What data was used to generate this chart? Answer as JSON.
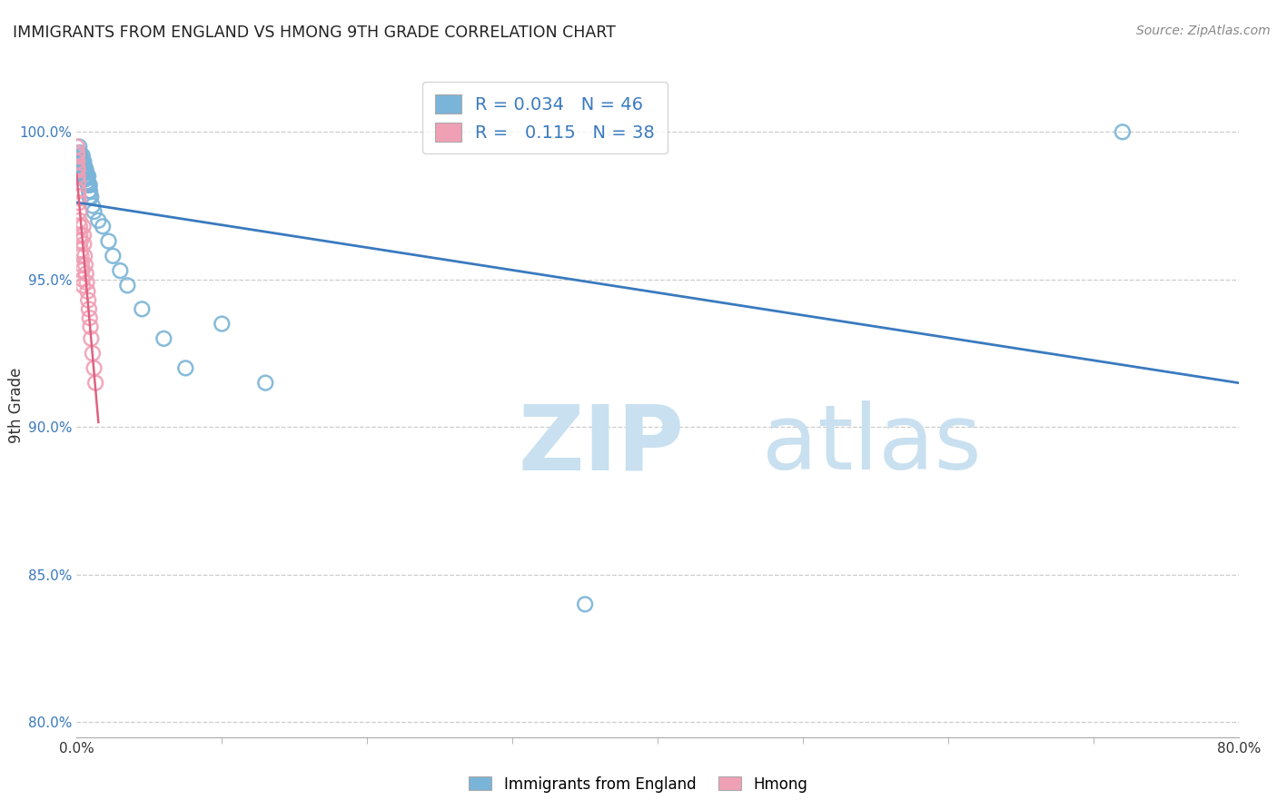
{
  "title": "IMMIGRANTS FROM ENGLAND VS HMONG 9TH GRADE CORRELATION CHART",
  "source": "Source: ZipAtlas.com",
  "ylabel": "9th Grade",
  "xlim": [
    0.0,
    80.0
  ],
  "ylim": [
    79.5,
    102.0
  ],
  "ytick_positions": [
    80.0,
    85.0,
    90.0,
    95.0,
    100.0
  ],
  "ytick_labels": [
    "80.0%",
    "85.0%",
    "90.0%",
    "95.0%",
    "100.0%"
  ],
  "blue_color": "#7ab4d8",
  "pink_color": "#f0a0b5",
  "trend_blue_color": "#3a7abf",
  "trend_pink_color": "#e06080",
  "watermark_zip_color": "#c8e0f0",
  "watermark_atlas_color": "#c8e0f0",
  "blue_x": [
    0.18,
    0.22,
    0.25,
    0.28,
    0.3,
    0.33,
    0.35,
    0.38,
    0.4,
    0.42,
    0.45,
    0.48,
    0.5,
    0.52,
    0.55,
    0.58,
    0.6,
    0.62,
    0.65,
    0.68,
    0.7,
    0.72,
    0.75,
    0.78,
    0.8,
    0.82,
    0.85,
    0.88,
    0.9,
    0.92,
    1.0,
    1.1,
    1.2,
    1.5,
    1.8,
    2.2,
    2.5,
    3.0,
    3.5,
    4.5,
    6.0,
    7.5,
    10.0,
    13.0,
    35.0,
    72.0
  ],
  "blue_y": [
    99.5,
    99.3,
    99.2,
    99.0,
    99.1,
    98.9,
    99.0,
    98.8,
    99.2,
    99.0,
    98.8,
    98.6,
    99.0,
    98.7,
    98.5,
    98.8,
    98.6,
    98.4,
    98.7,
    98.5,
    98.3,
    98.5,
    98.3,
    98.2,
    98.5,
    98.2,
    98.0,
    97.8,
    98.2,
    98.0,
    97.8,
    97.5,
    97.3,
    97.0,
    96.8,
    96.3,
    95.8,
    95.3,
    94.8,
    94.0,
    93.0,
    92.0,
    93.5,
    91.5,
    84.0,
    100.0
  ],
  "pink_x": [
    0.02,
    0.03,
    0.04,
    0.05,
    0.06,
    0.07,
    0.08,
    0.1,
    0.12,
    0.14,
    0.15,
    0.18,
    0.2,
    0.22,
    0.25,
    0.28,
    0.3,
    0.32,
    0.35,
    0.38,
    0.4,
    0.42,
    0.45,
    0.48,
    0.5,
    0.55,
    0.6,
    0.65,
    0.7,
    0.75,
    0.8,
    0.85,
    0.9,
    0.95,
    1.0,
    1.1,
    1.2,
    1.3
  ],
  "pink_y": [
    99.5,
    99.3,
    99.2,
    99.0,
    98.8,
    98.7,
    98.5,
    98.3,
    98.0,
    97.8,
    97.6,
    97.3,
    97.0,
    96.8,
    96.5,
    96.3,
    96.0,
    95.8,
    95.5,
    95.3,
    95.0,
    94.8,
    96.8,
    96.5,
    96.2,
    95.8,
    95.5,
    95.2,
    94.9,
    94.6,
    94.3,
    94.0,
    93.7,
    93.4,
    93.0,
    92.5,
    92.0,
    91.5
  ]
}
